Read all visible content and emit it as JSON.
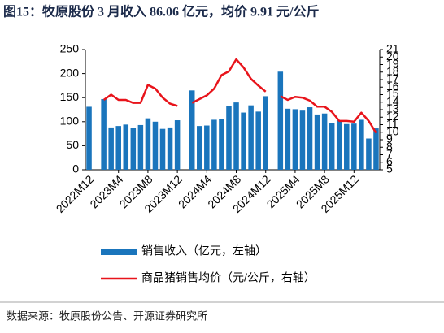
{
  "chart_data": {
    "type": "bar_line",
    "title": "图15：牧原股份 3 月收入 86.06 亿元，均价 9.91 元/公斤",
    "source": "数据来源：牧原股份公告、开源证券研究所",
    "categories": [
      "2022M12",
      null,
      null,
      null,
      "2023M4",
      null,
      null,
      null,
      "2023M8",
      null,
      null,
      null,
      "2023M12",
      null,
      null,
      null,
      "2024M4",
      null,
      null,
      null,
      "2024M8",
      null,
      null,
      null,
      "2024M12",
      null,
      null,
      null,
      "2025M4",
      null,
      null,
      null,
      "2025M8",
      null,
      null,
      null,
      "2025M12",
      null,
      null,
      null
    ],
    "series": [
      {
        "name": "销售收入（亿元，左轴）",
        "color": "#1a75bc",
        "type": "bar",
        "values": [
          131,
          null,
          147,
          88,
          91,
          94,
          87,
          93,
          107,
          100,
          85,
          88,
          103,
          null,
          165,
          91,
          92,
          104,
          106,
          133,
          140,
          119,
          134,
          121,
          153,
          null,
          204,
          127,
          126,
          123,
          130,
          115,
          117,
          97,
          103,
          95,
          96,
          104,
          65,
          86.06
        ]
      },
      {
        "name": "商品猪销售均价（元/公斤，右轴）",
        "color": "#e8141b",
        "type": "line",
        "axis": "y2",
        "values": [
          null,
          null,
          14.3,
          15.0,
          14.3,
          14.3,
          13.9,
          13.9,
          16.3,
          15.8,
          14.6,
          13.8,
          13.5,
          null,
          13.9,
          14.4,
          14.9,
          15.8,
          17.6,
          18.1,
          19.7,
          18.6,
          17.1,
          16.2,
          15.4,
          null,
          14.8,
          14.3,
          14.7,
          14.6,
          14.2,
          13.4,
          13.4,
          12.7,
          11.5,
          11.5,
          11.4,
          12.6,
          11.5,
          9.91
        ]
      }
    ],
    "ylim": [
      0,
      250
    ],
    "yticks": [
      0,
      50,
      100,
      150,
      200,
      250
    ],
    "y2lim": [
      5,
      21
    ],
    "y2ticks": [
      5,
      6,
      7,
      8,
      9,
      10,
      11,
      12,
      13,
      14,
      15,
      16,
      17,
      18,
      19,
      20,
      21
    ]
  }
}
